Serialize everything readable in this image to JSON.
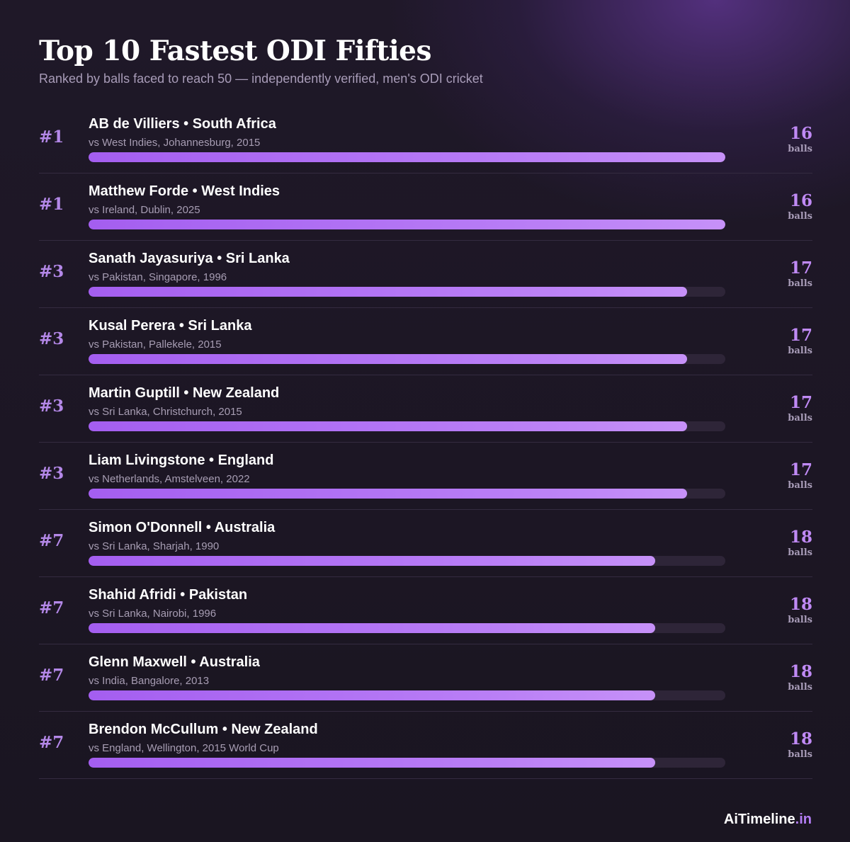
{
  "header": {
    "title": "Top 10 Fastest ODI Fifties",
    "subtitle": "Ranked by balls faced to reach 50 — independently verified, men's ODI cricket"
  },
  "chart_data": {
    "type": "bar",
    "orientation": "horizontal",
    "title": "Top 10 Fastest ODI Fifties",
    "subtitle": "Ranked by balls faced to reach 50 — independently verified, men's ODI cricket",
    "unit_label": "balls",
    "bar_color": "#b07ef6",
    "track_color": "#2e2538",
    "entries": [
      {
        "rank": "#1",
        "player": "AB de Villiers • South Africa",
        "match": "vs West Indies, Johannesburg, 2015",
        "balls": 16,
        "fill": 1.0
      },
      {
        "rank": "#1",
        "player": "Matthew Forde • West Indies",
        "match": "vs Ireland, Dublin, 2025",
        "balls": 16,
        "fill": 1.0
      },
      {
        "rank": "#3",
        "player": "Sanath Jayasuriya • Sri Lanka",
        "match": "vs Pakistan, Singapore, 1996",
        "balls": 17,
        "fill": 0.94
      },
      {
        "rank": "#3",
        "player": "Kusal Perera • Sri Lanka",
        "match": "vs Pakistan, Pallekele, 2015",
        "balls": 17,
        "fill": 0.94
      },
      {
        "rank": "#3",
        "player": "Martin Guptill • New Zealand",
        "match": "vs Sri Lanka, Christchurch, 2015",
        "balls": 17,
        "fill": 0.94
      },
      {
        "rank": "#3",
        "player": "Liam Livingstone • England",
        "match": "vs Netherlands, Amstelveen, 2022",
        "balls": 17,
        "fill": 0.94
      },
      {
        "rank": "#7",
        "player": "Simon O'Donnell • Australia",
        "match": "vs Sri Lanka, Sharjah, 1990",
        "balls": 18,
        "fill": 0.89
      },
      {
        "rank": "#7",
        "player": "Shahid Afridi • Pakistan",
        "match": "vs Sri Lanka, Nairobi, 1996",
        "balls": 18,
        "fill": 0.89
      },
      {
        "rank": "#7",
        "player": "Glenn Maxwell • Australia",
        "match": "vs India, Bangalore, 2013",
        "balls": 18,
        "fill": 0.89
      },
      {
        "rank": "#7",
        "player": "Brendon McCullum • New Zealand",
        "match": "vs England, Wellington, 2015 World Cup",
        "balls": 18,
        "fill": 0.89
      }
    ]
  },
  "footer": {
    "brand_main": "AiTimeline",
    "brand_tld": ".in"
  }
}
